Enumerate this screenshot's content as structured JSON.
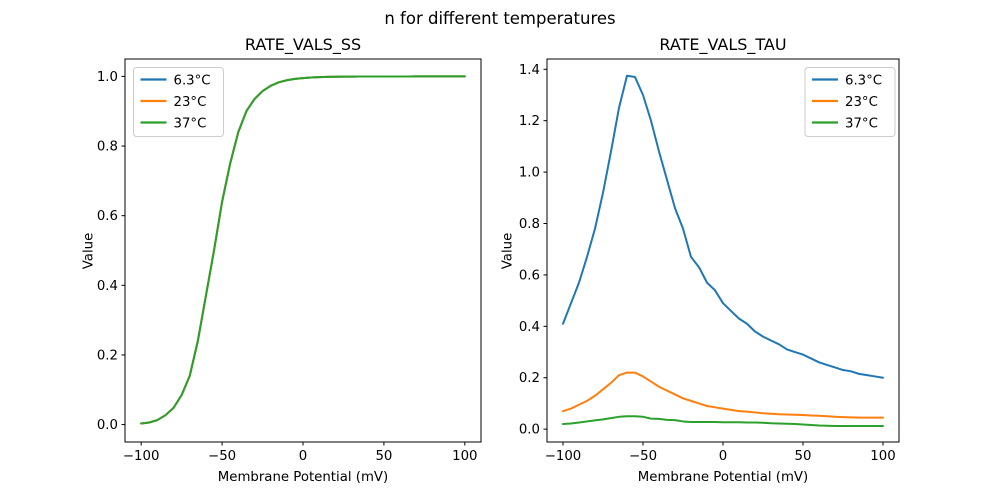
{
  "suptitle": "n for different temperatures",
  "colors": {
    "blue": "#1f77b4",
    "orange": "#ff7f0e",
    "green": "#2ca02c"
  },
  "chart_data": [
    {
      "type": "line",
      "title": "RATE_VALS_SS",
      "xlabel": "Membrane Potential (mV)",
      "ylabel": "Value",
      "legend_position": "upper left",
      "grid": false,
      "overlap_note": "all three temperature curves coincide exactly; green (37°C) drawn on top",
      "xlim": [
        -110,
        110
      ],
      "ylim": [
        -0.05,
        1.05
      ],
      "x_ticks": [
        -100,
        -50,
        0,
        50,
        100
      ],
      "x_tick_labels": [
        "−100",
        "−50",
        "0",
        "50",
        "100"
      ],
      "y_ticks": [
        0,
        0.2,
        0.4,
        0.6,
        0.8,
        1.0
      ],
      "y_tick_labels": [
        "0.0",
        "0.2",
        "0.4",
        "0.6",
        "0.8",
        "1.0"
      ],
      "x": [
        -100,
        -95,
        -90,
        -85,
        -80,
        -75,
        -70,
        -65,
        -60,
        -55,
        -50,
        -45,
        -40,
        -35,
        -30,
        -25,
        -20,
        -15,
        -10,
        -5,
        0,
        5,
        10,
        15,
        20,
        25,
        30,
        35,
        40,
        45,
        50,
        55,
        60,
        65,
        70,
        75,
        80,
        85,
        90,
        95,
        100
      ],
      "series": [
        {
          "name": "6.3°C",
          "color": "#1f77b4",
          "values": [
            0.003,
            0.006,
            0.013,
            0.027,
            0.048,
            0.085,
            0.14,
            0.24,
            0.37,
            0.5,
            0.64,
            0.75,
            0.84,
            0.9,
            0.935,
            0.958,
            0.973,
            0.983,
            0.989,
            0.993,
            0.995,
            0.997,
            0.998,
            0.9985,
            0.999,
            0.9993,
            0.9995,
            0.9996,
            0.9997,
            0.9998,
            0.9998,
            0.9999,
            0.9999,
            0.9999,
            1.0,
            1.0,
            1.0,
            1.0,
            1.0,
            1.0,
            1.0
          ]
        },
        {
          "name": "23°C",
          "color": "#ff7f0e",
          "values": [
            0.003,
            0.006,
            0.013,
            0.027,
            0.048,
            0.085,
            0.14,
            0.24,
            0.37,
            0.5,
            0.64,
            0.75,
            0.84,
            0.9,
            0.935,
            0.958,
            0.973,
            0.983,
            0.989,
            0.993,
            0.995,
            0.997,
            0.998,
            0.9985,
            0.999,
            0.9993,
            0.9995,
            0.9996,
            0.9997,
            0.9998,
            0.9998,
            0.9999,
            0.9999,
            0.9999,
            1.0,
            1.0,
            1.0,
            1.0,
            1.0,
            1.0,
            1.0
          ]
        },
        {
          "name": "37°C",
          "color": "#2ca02c",
          "values": [
            0.003,
            0.006,
            0.013,
            0.027,
            0.048,
            0.085,
            0.14,
            0.24,
            0.37,
            0.5,
            0.64,
            0.75,
            0.84,
            0.9,
            0.935,
            0.958,
            0.973,
            0.983,
            0.989,
            0.993,
            0.995,
            0.997,
            0.998,
            0.9985,
            0.999,
            0.9993,
            0.9995,
            0.9996,
            0.9997,
            0.9998,
            0.9998,
            0.9999,
            0.9999,
            0.9999,
            1.0,
            1.0,
            1.0,
            1.0,
            1.0,
            1.0,
            1.0
          ]
        }
      ]
    },
    {
      "type": "line",
      "title": "RATE_VALS_TAU",
      "xlabel": "Membrane Potential (mV)",
      "ylabel": "Value",
      "legend_position": "upper right",
      "grid": false,
      "xlim": [
        -110,
        110
      ],
      "ylim": [
        -0.05,
        1.44
      ],
      "x_ticks": [
        -100,
        -50,
        0,
        50,
        100
      ],
      "x_tick_labels": [
        "−100",
        "−50",
        "0",
        "50",
        "100"
      ],
      "y_ticks": [
        0,
        0.2,
        0.4,
        0.6,
        0.8,
        1.0,
        1.2,
        1.4
      ],
      "y_tick_labels": [
        "0.0",
        "0.2",
        "0.4",
        "0.6",
        "0.8",
        "1.0",
        "1.2",
        "1.4"
      ],
      "x": [
        -100,
        -95,
        -90,
        -85,
        -80,
        -75,
        -70,
        -65,
        -60,
        -55,
        -50,
        -45,
        -40,
        -35,
        -30,
        -25,
        -20,
        -15,
        -10,
        -5,
        0,
        5,
        10,
        15,
        20,
        25,
        30,
        35,
        40,
        45,
        50,
        55,
        60,
        65,
        70,
        75,
        80,
        85,
        90,
        95,
        100
      ],
      "series": [
        {
          "name": "6.3°C",
          "color": "#1f77b4",
          "values": [
            0.41,
            0.49,
            0.57,
            0.67,
            0.78,
            0.92,
            1.08,
            1.25,
            1.375,
            1.37,
            1.3,
            1.2,
            1.08,
            0.97,
            0.86,
            0.78,
            0.67,
            0.63,
            0.57,
            0.54,
            0.49,
            0.46,
            0.43,
            0.41,
            0.38,
            0.36,
            0.345,
            0.33,
            0.31,
            0.3,
            0.29,
            0.275,
            0.26,
            0.25,
            0.24,
            0.23,
            0.225,
            0.215,
            0.21,
            0.205,
            0.2
          ]
        },
        {
          "name": "23°C",
          "color": "#ff7f0e",
          "values": [
            0.07,
            0.08,
            0.095,
            0.11,
            0.13,
            0.155,
            0.18,
            0.21,
            0.22,
            0.22,
            0.205,
            0.185,
            0.165,
            0.15,
            0.135,
            0.12,
            0.11,
            0.1,
            0.09,
            0.085,
            0.08,
            0.075,
            0.07,
            0.068,
            0.065,
            0.062,
            0.06,
            0.058,
            0.057,
            0.056,
            0.055,
            0.053,
            0.052,
            0.05,
            0.048,
            0.047,
            0.046,
            0.045,
            0.045,
            0.045,
            0.045
          ]
        },
        {
          "name": "37°C",
          "color": "#2ca02c",
          "values": [
            0.02,
            0.022,
            0.026,
            0.03,
            0.034,
            0.038,
            0.043,
            0.048,
            0.05,
            0.05,
            0.048,
            0.041,
            0.04,
            0.036,
            0.035,
            0.03,
            0.028,
            0.028,
            0.028,
            0.028,
            0.027,
            0.027,
            0.027,
            0.026,
            0.026,
            0.025,
            0.023,
            0.022,
            0.021,
            0.02,
            0.018,
            0.016,
            0.014,
            0.013,
            0.012,
            0.012,
            0.012,
            0.012,
            0.012,
            0.012,
            0.012
          ]
        }
      ]
    }
  ]
}
